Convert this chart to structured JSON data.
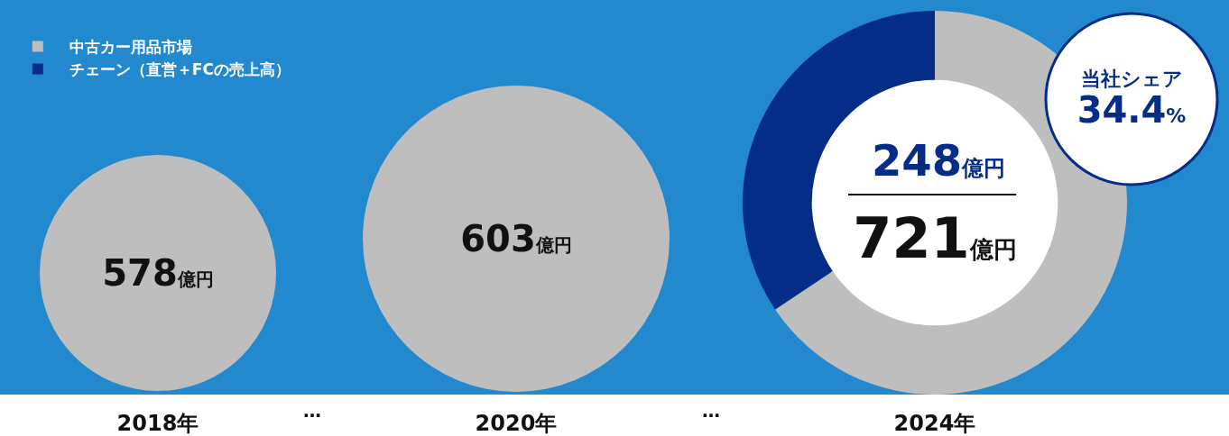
{
  "chart_data": [
    {
      "type": "pie",
      "title": "2018年",
      "categories": [
        null
      ],
      "values": [
        578
      ],
      "colors": [
        "#bebebe"
      ],
      "value_labels": [
        "578億円"
      ],
      "annotations": [
        "…"
      ]
    },
    {
      "type": "pie",
      "title": "2020年",
      "categories": [
        null
      ],
      "values": [
        603
      ],
      "colors": [
        "#bebebe"
      ],
      "value_labels": [
        "603億円"
      ],
      "annotations": [
        "…"
      ]
    },
    {
      "type": "donut",
      "title": "2024年",
      "categories": [
        "中古カー用品市場",
        "チェーン（直営＋FCの売上高）"
      ],
      "values": [
        65.6,
        34.4
      ],
      "colors": [
        "#bebebe",
        "#052c87"
      ],
      "legend": "top left",
      "annotations": [
        "248億円",
        "721億円",
        "当社シェア34.4%"
      ]
    }
  ]
}
